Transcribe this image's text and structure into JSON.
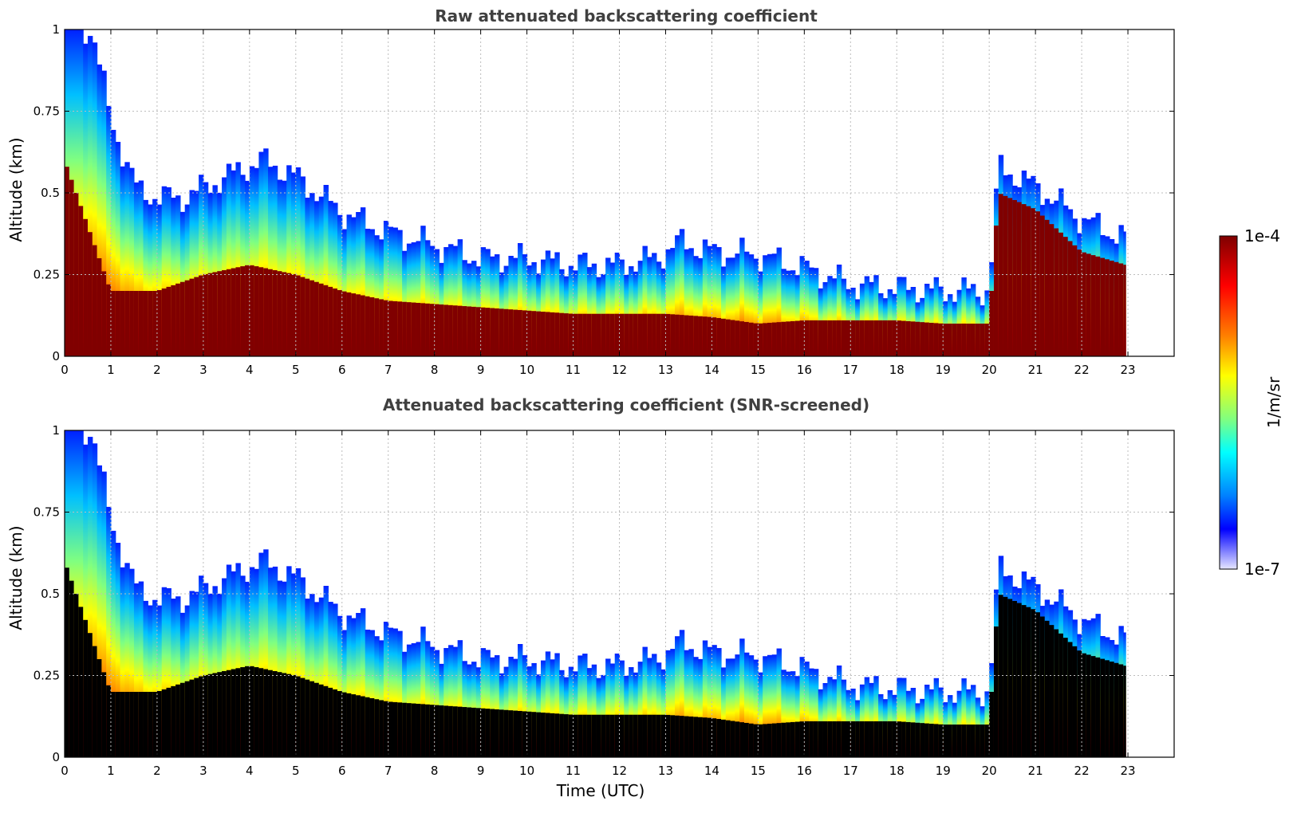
{
  "chart_data": [
    {
      "type": "heatmap",
      "title": "Raw attenuated backscattering coefficient",
      "xlabel": "",
      "ylabel": "Altitude (km)",
      "xlim": [
        0,
        24
      ],
      "ylim": [
        0,
        1
      ],
      "x_ticks": [
        "0",
        "1",
        "2",
        "3",
        "4",
        "5",
        "6",
        "7",
        "8",
        "9",
        "10",
        "11",
        "12",
        "13",
        "14",
        "15",
        "16",
        "17",
        "18",
        "19",
        "20",
        "21",
        "22",
        "23"
      ],
      "y_ticks": [
        "0",
        "0.25",
        "0.5",
        "0.75",
        "1"
      ],
      "grid": true,
      "data_end_hour": 22.95,
      "colorscale": "jet (log)",
      "mixed_layer_top_km": [
        [
          0,
          1.0
        ],
        [
          0.6,
          1.0
        ],
        [
          1.0,
          0.72
        ],
        [
          1.6,
          0.5
        ],
        [
          2.5,
          0.48
        ],
        [
          3.5,
          0.55
        ],
        [
          4.3,
          0.6
        ],
        [
          5.0,
          0.55
        ],
        [
          6.0,
          0.44
        ],
        [
          7.0,
          0.38
        ],
        [
          8.0,
          0.34
        ],
        [
          9.0,
          0.3
        ],
        [
          10.0,
          0.3
        ],
        [
          11.0,
          0.28
        ],
        [
          12.0,
          0.28
        ],
        [
          12.8,
          0.3
        ],
        [
          13.3,
          0.35
        ],
        [
          14.0,
          0.32
        ],
        [
          15.0,
          0.31
        ],
        [
          16.0,
          0.27
        ],
        [
          17.0,
          0.22
        ],
        [
          18.0,
          0.21
        ],
        [
          19.0,
          0.2
        ],
        [
          20.0,
          0.2
        ],
        [
          20.2,
          0.58
        ],
        [
          21.0,
          0.52
        ],
        [
          22.0,
          0.42
        ],
        [
          22.95,
          0.36
        ]
      ],
      "saturated_layer_top_km": [
        [
          0,
          0.6
        ],
        [
          1.0,
          0.2
        ],
        [
          2.0,
          0.2
        ],
        [
          3.0,
          0.25
        ],
        [
          4.0,
          0.28
        ],
        [
          5.0,
          0.25
        ],
        [
          6.0,
          0.2
        ],
        [
          7.0,
          0.17
        ],
        [
          8.0,
          0.16
        ],
        [
          9.0,
          0.15
        ],
        [
          10.0,
          0.14
        ],
        [
          11.0,
          0.13
        ],
        [
          12.0,
          0.13
        ],
        [
          13.0,
          0.13
        ],
        [
          14.0,
          0.12
        ],
        [
          15.0,
          0.1
        ],
        [
          16.0,
          0.11
        ],
        [
          17.0,
          0.11
        ],
        [
          18.0,
          0.11
        ],
        [
          19.0,
          0.1
        ],
        [
          20.0,
          0.1
        ],
        [
          20.2,
          0.5
        ],
        [
          21.0,
          0.45
        ],
        [
          22.0,
          0.32
        ],
        [
          22.95,
          0.28
        ]
      ]
    },
    {
      "type": "heatmap",
      "title": "Attenuated backscattering coefficient (SNR-screened)",
      "xlabel": "Time (UTC)",
      "ylabel": "Altitude (km)",
      "xlim": [
        0,
        24
      ],
      "ylim": [
        0,
        1
      ],
      "x_ticks": [
        "0",
        "1",
        "2",
        "3",
        "4",
        "5",
        "6",
        "7",
        "8",
        "9",
        "10",
        "11",
        "12",
        "13",
        "14",
        "15",
        "16",
        "17",
        "18",
        "19",
        "20",
        "21",
        "22",
        "23"
      ],
      "y_ticks": [
        "0",
        "0.25",
        "0.5",
        "0.75",
        "1"
      ],
      "grid": true,
      "data_end_hour": 22.95,
      "colorscale": "jet (log)",
      "screened_color": "#000000"
    }
  ],
  "colorbar": {
    "label": "1/m/sr",
    "max_label": "1e-4",
    "min_label": "1e-7",
    "colors": [
      "#7f0000",
      "#ff0000",
      "#ff7f00",
      "#ffff00",
      "#7fff7f",
      "#00ffff",
      "#007fff",
      "#0000ff",
      "#e6e6ff"
    ]
  }
}
